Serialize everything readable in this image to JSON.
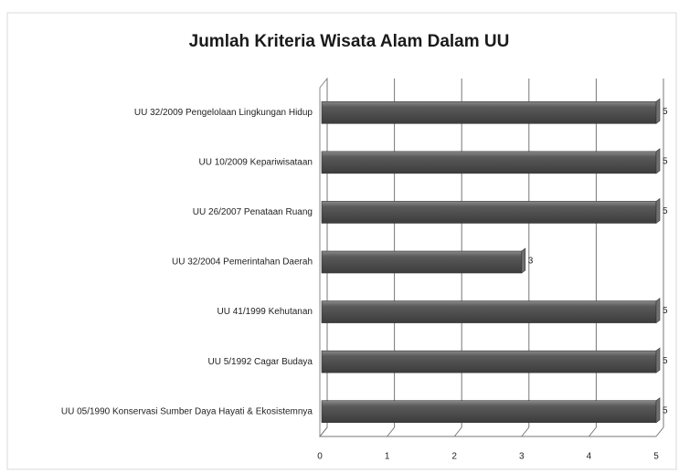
{
  "chart_data": {
    "type": "bar",
    "orientation": "horizontal",
    "title": "Jumlah Kriteria Wisata Alam Dalam UU",
    "categories": [
      "UU 32/2009 Pengelolaan Lingkungan Hidup",
      "UU 10/2009 Kepariwisataan",
      "UU 26/2007  Penataan Ruang",
      "UU 32/2004 Pemerintahan Daerah",
      "UU 41/1999 Kehutanan",
      "UU 5/1992 Cagar Budaya",
      "UU 05/1990 Konservasi Sumber Daya Hayati & Ekosistemnya"
    ],
    "values": [
      5,
      5,
      5,
      3,
      5,
      5,
      5
    ],
    "color": "#505050",
    "xlim": [
      0,
      5
    ],
    "xticks": [
      0,
      1,
      2,
      3,
      4,
      5
    ],
    "grid": true
  }
}
